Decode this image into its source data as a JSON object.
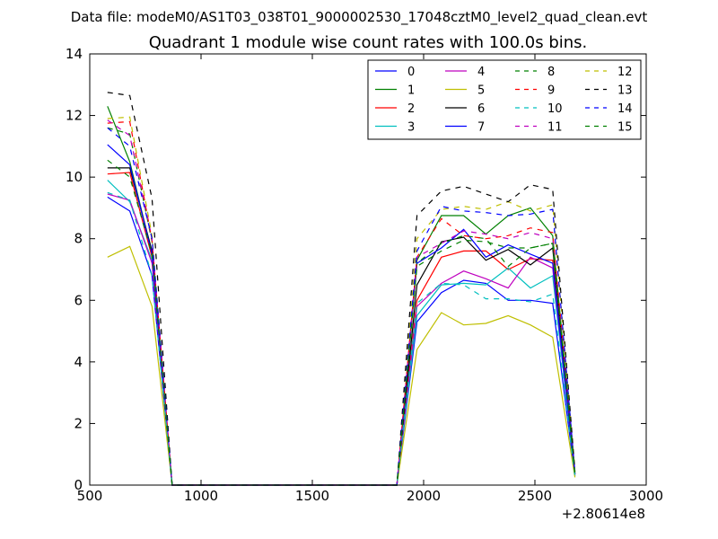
{
  "suptitle": "Data file: modeM0/AS1T03_038T01_9000002530_17048cztM0_level2_quad_clean.evt",
  "chart_data": {
    "type": "line",
    "title": "Quadrant 1 module wise count rates with 100.0s bins.",
    "xlabel": "",
    "ylabel": "",
    "xlim": [
      500,
      3000
    ],
    "ylim": [
      0,
      14
    ],
    "x_offset_label": "+2.80614e8",
    "x_ticks": [
      500,
      1000,
      1500,
      2000,
      2500,
      3000
    ],
    "y_ticks": [
      0,
      2,
      4,
      6,
      8,
      10,
      12,
      14
    ],
    "grid": false,
    "legend_position": "top-right",
    "legend_columns": 4,
    "x": [
      580,
      680,
      780,
      870,
      970,
      1070,
      1170,
      1270,
      1370,
      1470,
      1570,
      1670,
      1770,
      1880,
      1970,
      2080,
      2180,
      2280,
      2380,
      2480,
      2580,
      2680
    ],
    "series": [
      {
        "name": "0",
        "color": "#0000ff",
        "dash": "solid",
        "values": [
          9.35,
          8.9,
          6.8,
          0,
          0,
          0,
          0,
          0,
          0,
          0,
          0,
          0,
          0,
          0,
          5.3,
          6.25,
          6.65,
          6.55,
          6.0,
          6.0,
          5.9,
          0.3
        ]
      },
      {
        "name": "1",
        "color": "#008000",
        "dash": "solid",
        "values": [
          12.3,
          10.5,
          7.5,
          0,
          0,
          0,
          0,
          0,
          0,
          0,
          0,
          0,
          0,
          0,
          7.3,
          8.75,
          8.75,
          8.15,
          8.75,
          9.0,
          8.1,
          0.4
        ]
      },
      {
        "name": "2",
        "color": "#ff0000",
        "dash": "solid",
        "values": [
          10.1,
          10.15,
          7.4,
          0,
          0,
          0,
          0,
          0,
          0,
          0,
          0,
          0,
          0,
          0,
          6.0,
          7.4,
          7.6,
          7.6,
          7.0,
          7.35,
          7.3,
          0.35
        ]
      },
      {
        "name": "3",
        "color": "#00bfbf",
        "dash": "solid",
        "values": [
          9.9,
          9.2,
          7.3,
          0,
          0,
          0,
          0,
          0,
          0,
          0,
          0,
          0,
          0,
          0,
          5.5,
          6.5,
          6.55,
          6.5,
          7.05,
          6.4,
          6.8,
          0.3
        ]
      },
      {
        "name": "4",
        "color": "#bf00bf",
        "dash": "solid",
        "values": [
          9.45,
          9.25,
          7.2,
          0,
          0,
          0,
          0,
          0,
          0,
          0,
          0,
          0,
          0,
          0,
          5.8,
          6.55,
          6.95,
          6.7,
          6.4,
          7.4,
          7.05,
          0.35
        ]
      },
      {
        "name": "5",
        "color": "#bfbf00",
        "dash": "solid",
        "values": [
          7.4,
          7.75,
          5.8,
          0,
          0,
          0,
          0,
          0,
          0,
          0,
          0,
          0,
          0,
          0,
          4.4,
          5.6,
          5.2,
          5.25,
          5.5,
          5.2,
          4.8,
          0.25
        ]
      },
      {
        "name": "6",
        "color": "#000000",
        "dash": "solid",
        "values": [
          10.3,
          10.3,
          7.6,
          0,
          0,
          0,
          0,
          0,
          0,
          0,
          0,
          0,
          0,
          0,
          6.5,
          7.9,
          8.05,
          7.3,
          7.65,
          7.15,
          7.7,
          0.35
        ]
      },
      {
        "name": "7",
        "color": "#0000ff",
        "dash": "solid",
        "values": [
          11.05,
          10.4,
          7.5,
          0,
          0,
          0,
          0,
          0,
          0,
          0,
          0,
          0,
          0,
          0,
          7.2,
          7.7,
          8.3,
          7.4,
          7.8,
          7.5,
          7.2,
          0.35
        ]
      },
      {
        "name": "8",
        "color": "#008000",
        "dash": "dashed",
        "values": [
          11.6,
          11.4,
          7.9,
          0,
          0,
          0,
          0,
          0,
          0,
          0,
          0,
          0,
          0,
          0,
          7.2,
          7.85,
          8.1,
          8.0,
          7.1,
          7.7,
          7.85,
          0.4
        ]
      },
      {
        "name": "9",
        "color": "#ff0000",
        "dash": "dashed",
        "values": [
          11.75,
          11.8,
          7.95,
          0,
          0,
          0,
          0,
          0,
          0,
          0,
          0,
          0,
          0,
          0,
          7.4,
          8.65,
          8.1,
          8.0,
          8.1,
          8.35,
          8.2,
          0.4
        ]
      },
      {
        "name": "10",
        "color": "#00bfbf",
        "dash": "dashed",
        "values": [
          9.5,
          9.25,
          6.8,
          0,
          0,
          0,
          0,
          0,
          0,
          0,
          0,
          0,
          0,
          0,
          5.9,
          6.55,
          6.5,
          6.05,
          6.05,
          5.95,
          6.2,
          0.3
        ]
      },
      {
        "name": "11",
        "color": "#bf00bf",
        "dash": "dashed",
        "values": [
          11.85,
          11.35,
          8.0,
          0,
          0,
          0,
          0,
          0,
          0,
          0,
          0,
          0,
          0,
          0,
          7.4,
          7.85,
          8.25,
          8.15,
          8.0,
          8.2,
          8.0,
          0.4
        ]
      },
      {
        "name": "12",
        "color": "#bfbf00",
        "dash": "dashed",
        "values": [
          11.9,
          11.95,
          8.1,
          0,
          0,
          0,
          0,
          0,
          0,
          0,
          0,
          0,
          0,
          0,
          8.0,
          8.95,
          9.05,
          8.95,
          9.2,
          8.9,
          9.1,
          0.45
        ]
      },
      {
        "name": "13",
        "color": "#000000",
        "dash": "dashed",
        "values": [
          12.75,
          12.65,
          9.3,
          0,
          0,
          0,
          0,
          0,
          0,
          0,
          0,
          0,
          0,
          0,
          8.75,
          9.55,
          9.7,
          9.45,
          9.2,
          9.75,
          9.6,
          0.45
        ]
      },
      {
        "name": "14",
        "color": "#0000ff",
        "dash": "dashed",
        "values": [
          11.6,
          11.0,
          8.0,
          0,
          0,
          0,
          0,
          0,
          0,
          0,
          0,
          0,
          0,
          0,
          7.6,
          9.05,
          8.9,
          8.85,
          8.75,
          8.8,
          8.95,
          0.4
        ]
      },
      {
        "name": "15",
        "color": "#008000",
        "dash": "dashed",
        "values": [
          10.55,
          10.0,
          7.5,
          0,
          0,
          0,
          0,
          0,
          0,
          0,
          0,
          0,
          0,
          0,
          7.1,
          7.6,
          7.95,
          7.9,
          7.7,
          7.7,
          7.85,
          0.35
        ]
      }
    ]
  }
}
